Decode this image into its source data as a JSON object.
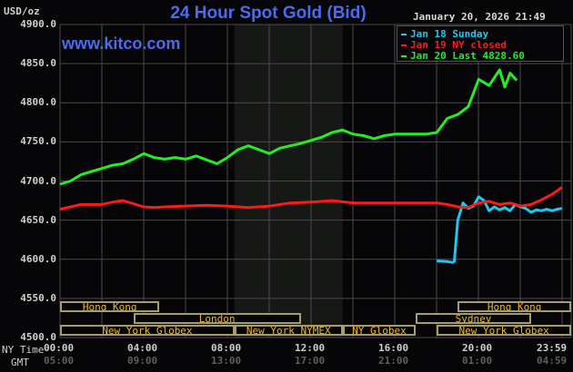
{
  "header": {
    "title": "24 Hour Spot Gold (Bid)",
    "unit": "USD/oz",
    "datetime": "January 20, 2026 21:49",
    "website": "www.kitco.com"
  },
  "legend": [
    {
      "label": "Jan 18 Sunday",
      "color": "#1ec8f0"
    },
    {
      "label": "Jan 19 NY closed",
      "color": "#ff1a1a"
    },
    {
      "label": "Jan 20 Last 4828.60",
      "color": "#22ee22"
    }
  ],
  "axes": {
    "y_ticks": [
      "4900.0",
      "4850.0",
      "4800.0",
      "4750.0",
      "4700.0",
      "4650.0",
      "4600.0",
      "4550.0",
      "4500.0"
    ],
    "x_row_labels": {
      "ny": "NY Time",
      "gmt": "GMT"
    },
    "x_ticks_ny": [
      "00:00",
      "04:00",
      "08:00",
      "12:00",
      "16:00",
      "20:00",
      "23:59"
    ],
    "x_ticks_gmt": [
      "05:00",
      "09:00",
      "13:00",
      "17:00",
      "21:00",
      "01:00",
      "04:59"
    ]
  },
  "sessions": [
    {
      "label": "Hong Kong",
      "row": 0,
      "start": "00:00",
      "end": "04:45"
    },
    {
      "label": "London",
      "row": 1,
      "start": "03:30",
      "end": "11:30"
    },
    {
      "label": "New York Globex",
      "row": 2,
      "start": "00:00",
      "end": "08:20"
    },
    {
      "label": "New York NYMEX",
      "row": 2,
      "start": "08:20",
      "end": "13:30"
    },
    {
      "label": "NY Globex",
      "row": 2,
      "start": "13:30",
      "end": "17:00"
    },
    {
      "label": "Hong Kong",
      "row": 0,
      "start": "19:00",
      "end": "23:59"
    },
    {
      "label": "Sydney",
      "row": 1,
      "start": "17:00",
      "end": "22:30"
    },
    {
      "label": "New York Globex",
      "row": 2,
      "start": "18:00",
      "end": "23:59"
    }
  ],
  "colors": {
    "background": "#060608",
    "grid": "#4a4a4a",
    "shade": "#161815",
    "title": "#4a6cf0",
    "session_border": "#a59d6a",
    "session_text": "#f4b81c"
  },
  "chart_data": {
    "type": "line",
    "title": "24 Hour Spot Gold (Bid)",
    "xlabel": "NY Time / GMT",
    "ylabel": "USD/oz",
    "ylim": [
      4500,
      4900
    ],
    "xlim": [
      "00:00",
      "23:59"
    ],
    "grid": true,
    "legend_position": "top-right",
    "shaded_region": {
      "start": "08:20",
      "end": "13:30",
      "label": "New York NYMEX"
    },
    "series": [
      {
        "name": "Jan 18 Sunday",
        "color": "#1ec8f0",
        "x": [
          "18:00",
          "18:30",
          "18:45",
          "18:50",
          "19:00",
          "19:15",
          "19:30",
          "19:45",
          "20:00",
          "20:15",
          "20:30",
          "20:45",
          "21:00",
          "21:15",
          "21:30",
          "21:45",
          "22:00",
          "22:15",
          "22:30",
          "22:45",
          "23:00",
          "23:15",
          "23:30",
          "23:45",
          "23:59"
        ],
        "y": [
          4598,
          4597,
          4596,
          4597,
          4650,
          4672,
          4665,
          4668,
          4680,
          4675,
          4662,
          4667,
          4663,
          4666,
          4662,
          4670,
          4667,
          4665,
          4660,
          4663,
          4662,
          4664,
          4662,
          4664,
          4665
        ]
      },
      {
        "name": "Jan 19 NY closed",
        "color": "#ff1a1a",
        "x": [
          "00:00",
          "01:00",
          "02:00",
          "02:30",
          "03:00",
          "04:00",
          "04:30",
          "05:00",
          "06:00",
          "07:00",
          "08:00",
          "09:00",
          "10:00",
          "11:00",
          "12:00",
          "13:00",
          "14:00",
          "15:00",
          "16:00",
          "17:00",
          "18:00",
          "18:30",
          "19:00",
          "19:30",
          "20:00",
          "20:30",
          "21:00",
          "21:30",
          "22:00",
          "22:30",
          "23:00",
          "23:30",
          "23:59"
        ],
        "y": [
          4664,
          4670,
          4670,
          4673,
          4675,
          4667,
          4666,
          4667,
          4668,
          4669,
          4668,
          4666,
          4668,
          4672,
          4673,
          4675,
          4672,
          4672,
          4672,
          4672,
          4672,
          4670,
          4667,
          4666,
          4672,
          4674,
          4670,
          4672,
          4668,
          4670,
          4676,
          4683,
          4692
        ]
      },
      {
        "name": "Jan 20 Last 4828.60",
        "color": "#22ee22",
        "x": [
          "00:00",
          "00:30",
          "01:00",
          "01:30",
          "02:00",
          "02:30",
          "03:00",
          "03:30",
          "04:00",
          "04:30",
          "05:00",
          "05:30",
          "06:00",
          "06:30",
          "07:00",
          "07:30",
          "08:00",
          "08:30",
          "09:00",
          "09:30",
          "10:00",
          "10:30",
          "11:00",
          "11:30",
          "12:00",
          "12:30",
          "13:00",
          "13:30",
          "14:00",
          "14:30",
          "15:00",
          "15:30",
          "16:00",
          "16:30",
          "17:00",
          "17:30",
          "18:00",
          "18:30",
          "19:00",
          "19:30",
          "20:00",
          "20:30",
          "21:00",
          "21:15",
          "21:30",
          "21:49"
        ],
        "y": [
          4696,
          4700,
          4708,
          4712,
          4716,
          4720,
          4722,
          4728,
          4735,
          4730,
          4728,
          4730,
          4728,
          4732,
          4727,
          4722,
          4730,
          4740,
          4745,
          4740,
          4735,
          4742,
          4745,
          4748,
          4752,
          4756,
          4762,
          4765,
          4760,
          4758,
          4754,
          4758,
          4760,
          4760,
          4760,
          4760,
          4762,
          4780,
          4785,
          4795,
          4830,
          4822,
          4842,
          4820,
          4838,
          4828.6
        ]
      }
    ]
  }
}
